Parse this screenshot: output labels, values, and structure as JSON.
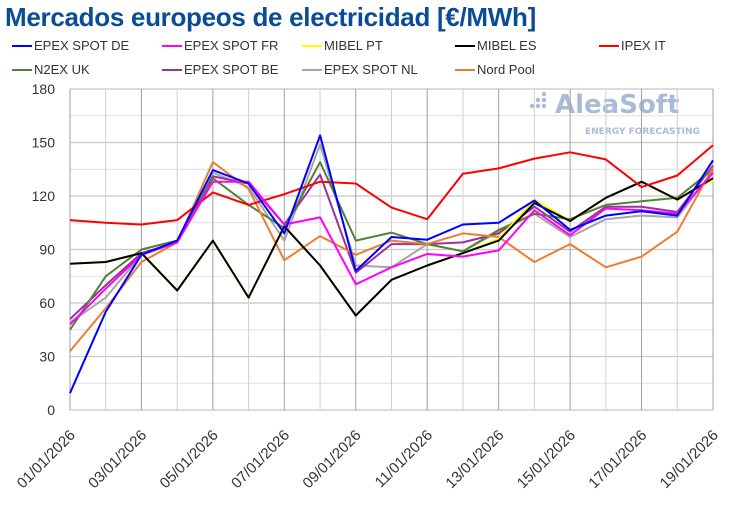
{
  "chart_data": {
    "type": "line",
    "title": "Mercados europeos de electricidad [€/MWh]",
    "xlabel": "",
    "ylabel": "",
    "ylim": [
      0,
      180
    ],
    "yticks": [
      0,
      30,
      60,
      90,
      120,
      150,
      180
    ],
    "grid": true,
    "legend_placement": "top",
    "x": [
      "01/01/2026",
      "02/01/2026",
      "03/01/2026",
      "04/01/2026",
      "05/01/2026",
      "06/01/2026",
      "07/01/2026",
      "08/01/2026",
      "09/01/2026",
      "10/01/2026",
      "11/01/2026",
      "12/01/2026",
      "13/01/2026",
      "14/01/2026",
      "15/01/2026",
      "16/01/2026",
      "17/01/2026",
      "18/01/2026",
      "19/01/2026"
    ],
    "xtick_labels": [
      "01/01/2026",
      "03/01/2026",
      "05/01/2026",
      "07/01/2026",
      "09/01/2026",
      "11/01/2026",
      "13/01/2026",
      "15/01/2026",
      "17/01/2026",
      "19/01/2026"
    ],
    "series": [
      {
        "name": "EPEX SPOT DE",
        "color": "#0000ff",
        "values": [
          9.5,
          55,
          87,
          95,
          134.5,
          127,
          99,
          154,
          78,
          97,
          95.5,
          104,
          105,
          117.5,
          101,
          109,
          111.5,
          109,
          140
        ]
      },
      {
        "name": "EPEX SPOT FR",
        "color": "#ff00ff",
        "values": [
          48,
          68,
          87,
          94,
          128,
          128,
          104,
          108,
          70.5,
          80,
          87.5,
          86,
          89.5,
          112,
          98,
          113,
          112,
          110,
          133
        ]
      },
      {
        "name": "MIBEL PT",
        "color": "#ffff00",
        "values": [
          82,
          83,
          88,
          67,
          95,
          63,
          103,
          81,
          53,
          73,
          81,
          88,
          96,
          118,
          106,
          119,
          128,
          118,
          129
        ]
      },
      {
        "name": "MIBEL ES",
        "color": "#000000",
        "values": [
          82,
          83,
          88,
          67,
          95,
          63,
          103,
          81,
          53,
          73,
          81,
          88,
          95,
          116,
          106,
          119,
          128,
          118,
          130
        ]
      },
      {
        "name": "IPEX IT",
        "color": "#ff0000",
        "values": [
          106.5,
          105,
          104,
          106.5,
          122,
          115,
          121,
          128,
          127,
          113.5,
          107,
          132.5,
          135.5,
          141,
          144.5,
          140.5,
          125,
          131.5,
          148.5
        ]
      },
      {
        "name": "N2EX UK",
        "color": "#548235",
        "values": [
          45,
          75,
          90,
          95,
          130,
          115,
          102,
          139,
          95,
          99.5,
          93,
          89,
          101,
          110,
          107,
          115,
          117,
          119,
          135
        ]
      },
      {
        "name": "EPEX SPOT BE",
        "color": "#993399",
        "values": [
          51,
          70,
          88,
          94,
          131,
          127,
          104,
          132,
          77,
          93,
          93,
          94,
          99,
          114,
          100,
          114,
          114,
          111,
          137
        ]
      },
      {
        "name": "EPEX SPOT NL",
        "color": "#a6a6a6",
        "values": [
          49,
          63,
          87,
          94,
          133,
          125,
          95,
          149,
          81,
          80,
          93,
          89,
          100,
          110,
          97,
          107,
          109,
          108,
          134
        ]
      },
      {
        "name": "Nord Pool",
        "color": "#ed7d31",
        "values": [
          33,
          57,
          83,
          94,
          139,
          124,
          84,
          97.5,
          87,
          95,
          93,
          99,
          97,
          83,
          93,
          80,
          86,
          100,
          136
        ]
      }
    ]
  },
  "watermark": {
    "brand": "AleaSoft",
    "tagline": "ENERGY FORECASTING"
  }
}
